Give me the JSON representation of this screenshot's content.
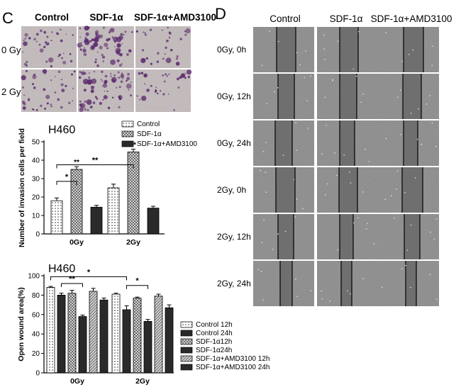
{
  "panel_c": {
    "letter": "C",
    "micro_cols": [
      "Control",
      "SDF-1α",
      "SDF-1α+AMD3100"
    ],
    "micro_rows": [
      "0 Gy",
      "2 Gy"
    ]
  },
  "panel_d": {
    "letter": "D",
    "cols": [
      "Control",
      "SDF-1α",
      "SDF-1α+AMD3100"
    ],
    "rows": [
      "0Gy,  0h",
      "0Gy,  12h",
      "0Gy,  24h",
      "2Gy,  0h",
      "2Gy,  12h",
      "2Gy,  24h"
    ]
  },
  "colors": {
    "bg": "#ffffff",
    "bar_stroke": "#000000",
    "stain": "#5c2a6e",
    "micro_bg": "#cfc7c8",
    "wound_bg": "#9a9a9a"
  },
  "chart_data": [
    {
      "type": "bar",
      "title": "H460",
      "ylabel": "Number of invasion cells per field",
      "categories": [
        "0Gy",
        "2Gy"
      ],
      "ylim": [
        0,
        50
      ],
      "yticks": [
        0,
        10,
        20,
        30,
        40,
        50
      ],
      "series": [
        {
          "name": "Control",
          "values": [
            18,
            25
          ],
          "errors": [
            1.5,
            2
          ],
          "pattern": "dots"
        },
        {
          "name": "SDF-1α",
          "values": [
            35,
            44.5
          ],
          "errors": [
            1.5,
            1.5
          ],
          "pattern": "cross"
        },
        {
          "name": "SDF-1α+AMD3100",
          "values": [
            14.5,
            14
          ],
          "errors": [
            1,
            1
          ],
          "pattern": "dark"
        }
      ],
      "bar_labels": [
        {
          "series": 1,
          "category": 0,
          "text": "**"
        },
        {
          "series": 1,
          "category": 1,
          "text": "**"
        }
      ],
      "brackets": [
        {
          "from": [
            0,
            0
          ],
          "to": [
            1,
            0
          ],
          "text": "*",
          "level": 28.5
        },
        {
          "from": [
            0,
            0
          ],
          "to": [
            1,
            1
          ],
          "text": "**",
          "level": 37.5
        }
      ],
      "legend_position": "top-right"
    },
    {
      "type": "bar",
      "title": "H460",
      "ylabel": "Open wound area(%)",
      "categories": [
        "0Gy",
        "2Gy"
      ],
      "ylim": [
        0,
        100
      ],
      "yticks": [
        0,
        20,
        40,
        60,
        80,
        100
      ],
      "series": [
        {
          "name": "Control 12h",
          "values": [
            88,
            81
          ],
          "errors": [
            1,
            1
          ],
          "pattern": "dots"
        },
        {
          "name": "Control 24h",
          "values": [
            80,
            65
          ],
          "errors": [
            2,
            4
          ],
          "pattern": "dark"
        },
        {
          "name": "SDF-1α12h",
          "values": [
            82,
            77
          ],
          "errors": [
            3,
            1
          ],
          "pattern": "cross"
        },
        {
          "name": "SDF-1α24h",
          "values": [
            58,
            53
          ],
          "errors": [
            1.5,
            2
          ],
          "pattern": "dark"
        },
        {
          "name": "SDF-1α+AMD3100 12h",
          "values": [
            84,
            79
          ],
          "errors": [
            3,
            2
          ],
          "pattern": "diag"
        },
        {
          "name": "SDF-1α+AMD3100 24h",
          "values": [
            75,
            67
          ],
          "errors": [
            2,
            3
          ],
          "pattern": "dark"
        }
      ],
      "brackets": [
        {
          "from": [
            1,
            0
          ],
          "to": [
            3,
            0
          ],
          "text": "**",
          "level": 92
        },
        {
          "from": [
            0,
            0
          ],
          "to": [
            1,
            1
          ],
          "text": "*",
          "level": 99
        },
        {
          "from": [
            1,
            1
          ],
          "to": [
            3,
            1
          ],
          "text": "*",
          "level": 90
        }
      ],
      "legend_position": "right"
    }
  ]
}
